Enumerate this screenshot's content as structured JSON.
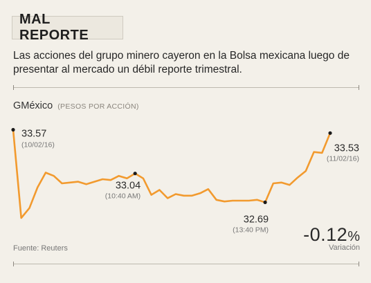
{
  "header": {
    "title": "MAL REPORTE"
  },
  "description": "Las acciones del grupo minero cayeron en la Bolsa mexicana luego de presentar al mercado un débil reporte trimestral.",
  "chart_header": {
    "name": "GMéxico",
    "unit": "(PESOS POR ACCIÓN)"
  },
  "footer": {
    "source": "Fuente: Reuters",
    "change_value": "-0.12",
    "change_unit": "%",
    "change_caption": "Variación"
  },
  "colors": {
    "line": "#f29a2e",
    "marker": "#1a1a1a",
    "background": "#f3f0e9"
  },
  "chart_data": {
    "type": "line",
    "title": "GMéxico",
    "ylabel": "(PESOS POR ACCIÓN)",
    "ylim": [
      32.5,
      33.65
    ],
    "grid": false,
    "series": [
      {
        "values": [
          33.57,
          32.5,
          32.62,
          32.87,
          33.05,
          33.01,
          32.92,
          32.93,
          32.94,
          32.91,
          32.94,
          32.97,
          32.96,
          33.01,
          32.98,
          33.04,
          32.98,
          32.78,
          32.84,
          32.74,
          32.79,
          32.77,
          32.77,
          32.8,
          32.85,
          32.72,
          32.7,
          32.71,
          32.71,
          32.71,
          32.72,
          32.69,
          32.92,
          32.93,
          32.9,
          32.99,
          33.07,
          33.3,
          33.29,
          33.53
        ]
      }
    ],
    "annotations": [
      {
        "index": 0,
        "value": "33.57",
        "time": "(10/02/16)",
        "position": "right"
      },
      {
        "index": 15,
        "value": "33.04",
        "time": "(10:40 AM)",
        "position": "below-left"
      },
      {
        "index": 31,
        "value": "32.69",
        "time": "(13:40 PM)",
        "position": "below"
      },
      {
        "index": 39,
        "value": "33.53",
        "time": "(11/02/16)",
        "position": "below-right"
      }
    ]
  }
}
